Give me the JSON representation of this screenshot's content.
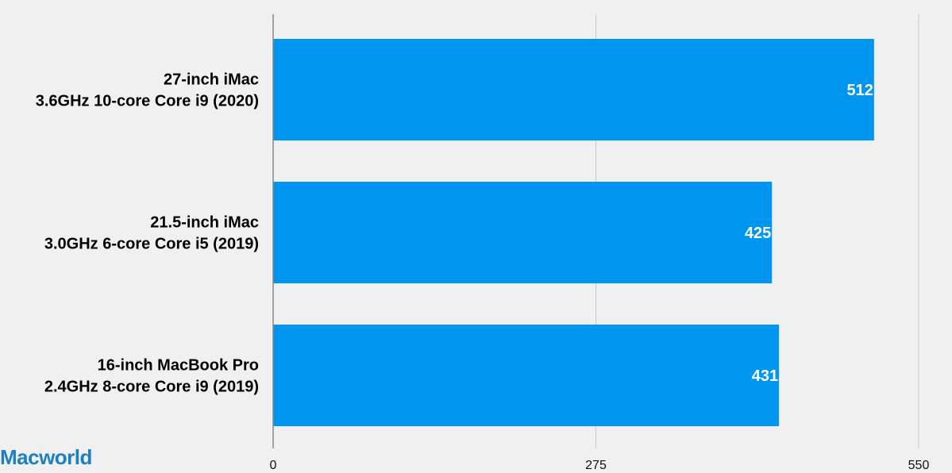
{
  "brand": {
    "logo_text": "Macworld",
    "color": "#1d7fc4"
  },
  "chart_data": {
    "type": "bar",
    "orientation": "horizontal",
    "categories": [
      [
        "27-inch iMac",
        "3.6GHz 10-core Core i9 (2020)"
      ],
      [
        "21.5-inch iMac",
        "3.0GHz 6-core Core i5 (2019)"
      ],
      [
        "16-inch MacBook Pro",
        "2.4GHz 8-core Core i9 (2019)"
      ]
    ],
    "values": [
      512,
      425,
      431
    ],
    "value_labels": [
      "512",
      "425",
      "431"
    ],
    "xlim": [
      0,
      550
    ],
    "ticks": [
      0,
      275,
      550
    ],
    "tick_labels": [
      "0",
      "275",
      "550"
    ],
    "grid": true,
    "legend": "none",
    "title": "",
    "xlabel": "",
    "ylabel": "",
    "bar_color": "#0095ef",
    "grid_color": "#c8c8c8",
    "axis_color": "#888888"
  }
}
